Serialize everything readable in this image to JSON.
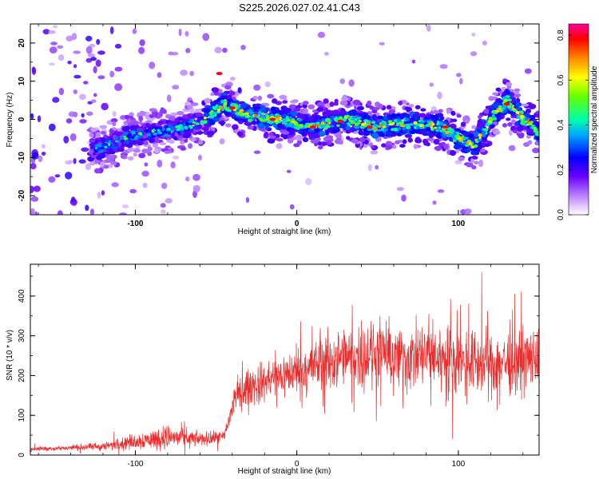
{
  "title": "S225.2026.027.02.41.C43",
  "colors": {
    "snr_line": "#ee2a2a",
    "axes": "#000000",
    "background": "#ffffff"
  },
  "chart_data": [
    {
      "type": "heatmap",
      "title": "S225.2026.027.02.41.C43",
      "xlabel": "Height of straight line (km)",
      "ylabel": "Frequency (Hz)",
      "xlim": [
        -165,
        150
      ],
      "ylim": [
        -25,
        25
      ],
      "xticks": [
        -100,
        0,
        100
      ],
      "xtick_labels": [
        "-100",
        "0",
        "100"
      ],
      "yticks": [
        -20,
        -10,
        0,
        10,
        20
      ],
      "ytick_labels": [
        "-20",
        "-10",
        "0",
        "10",
        "20"
      ],
      "ridge": {
        "x": [
          -125,
          -100,
          -80,
          -60,
          -45,
          -30,
          -10,
          10,
          30,
          50,
          70,
          90,
          100,
          110,
          120,
          130,
          140,
          150
        ],
        "y": [
          -8,
          -4,
          -3,
          -1,
          4,
          1,
          0,
          -2,
          0,
          -2,
          -1,
          -2,
          -5,
          -7,
          0,
          5,
          0,
          -3
        ]
      },
      "colorbar": {
        "label": "Normalized spectral amplitude",
        "range": [
          0,
          0.85
        ],
        "ticks": [
          0,
          0.2,
          0.4,
          0.6,
          0.8
        ],
        "tick_labels": [
          "0.0",
          "0.2",
          "0.4",
          "0.6",
          "0.8"
        ]
      }
    },
    {
      "type": "line",
      "xlabel": "Height of straight line (km)",
      "ylabel": "SNR (10 * v/v)",
      "xlim": [
        -165,
        150
      ],
      "ylim": [
        0,
        480
      ],
      "xticks": [
        -100,
        0,
        100
      ],
      "xtick_labels": [
        "-100",
        "0",
        "100"
      ],
      "yticks": [
        0,
        100,
        200,
        300,
        400
      ],
      "ytick_labels": [
        "0",
        "100",
        "200",
        "300",
        "400"
      ],
      "series": [
        {
          "name": "SNR",
          "x": [
            -165,
            -140,
            -120,
            -100,
            -80,
            -60,
            -45,
            -38,
            -30,
            -20,
            -10,
            0,
            10,
            20,
            30,
            40,
            50,
            60,
            70,
            80,
            90,
            100,
            110,
            120,
            130,
            140,
            150
          ],
          "mean": [
            15,
            18,
            22,
            35,
            45,
            40,
            45,
            150,
            170,
            185,
            200,
            210,
            225,
            235,
            245,
            250,
            255,
            245,
            240,
            250,
            245,
            240,
            235,
            230,
            235,
            240,
            245
          ],
          "spread": [
            8,
            10,
            15,
            30,
            45,
            25,
            25,
            60,
            70,
            75,
            80,
            90,
            100,
            110,
            110,
            120,
            120,
            120,
            125,
            125,
            125,
            120,
            120,
            120,
            120,
            120,
            120
          ]
        }
      ]
    }
  ]
}
